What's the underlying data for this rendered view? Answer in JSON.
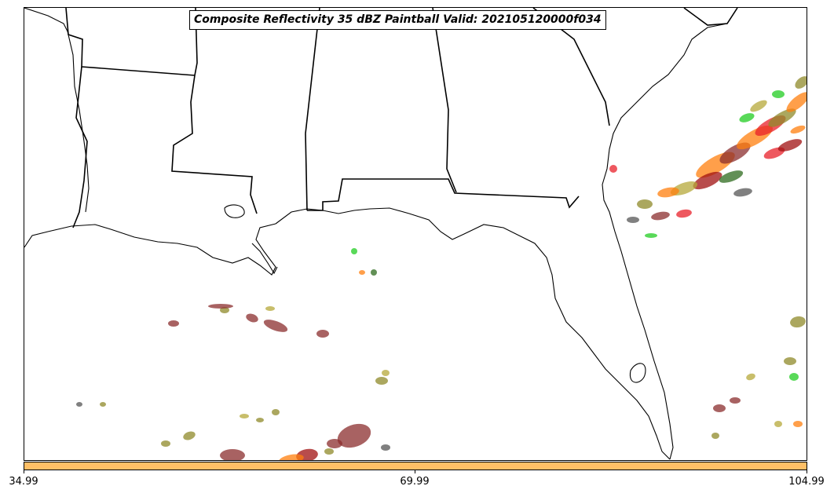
{
  "title": "Composite Reflectivity 35 dBZ Paintball Valid: 202105120000f034",
  "colorbar": {
    "color": "#ffbf66",
    "ticks": [
      "34.99",
      "69.99",
      "104.99"
    ]
  },
  "colors": {
    "member_brown": "#8b2e2e",
    "member_olive": "#8f8a2a",
    "member_orange": "#ff7f0e",
    "member_red": "#e8202a",
    "member_darkred": "#a01010",
    "member_green": "#22cc22",
    "member_darkgreen": "#2e6b1e",
    "member_gray": "#555555",
    "member_khaki": "#b5a83a"
  }
}
